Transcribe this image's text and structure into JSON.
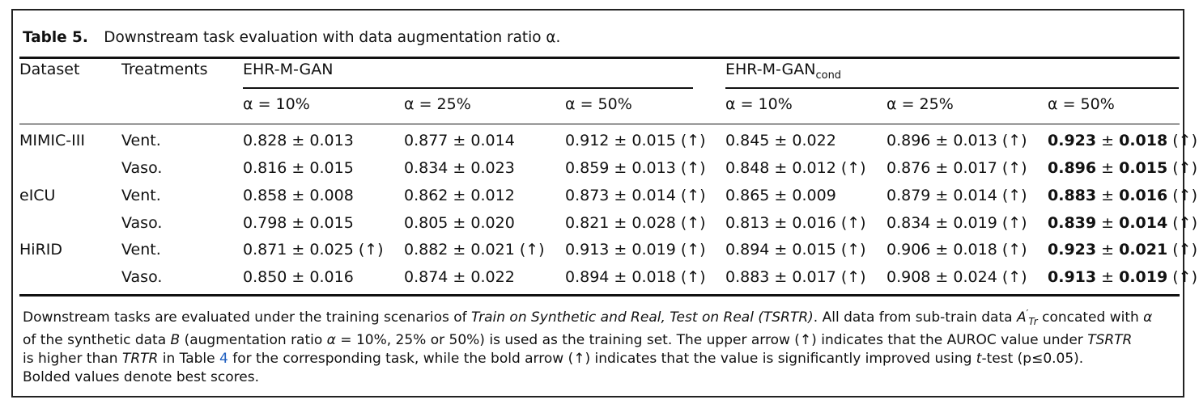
{
  "caption": {
    "label": "Table 5.",
    "text": "Downstream task evaluation with data augmentation ratio α."
  },
  "header": {
    "col_dataset": "Dataset",
    "col_treatments": "Treatments",
    "group1": "EHR-M-GAN",
    "group2_main": "EHR-M-GAN",
    "group2_sub": "cond",
    "ratios": [
      "α = 10%",
      "α = 25%",
      "α = 50%",
      "α = 10%",
      "α = 25%",
      "α = 50%"
    ]
  },
  "rows": [
    {
      "dataset": "MIMIC-III",
      "treatment": "Vent.",
      "cells": [
        {
          "v": "0.828 ± 0.013",
          "a": ""
        },
        {
          "v": "0.877 ± 0.014",
          "a": ""
        },
        {
          "v": "0.912 ± 0.015",
          "a": "(↑)"
        },
        {
          "v": "0.845 ± 0.022",
          "a": ""
        },
        {
          "v": "0.896 ± 0.013",
          "a": "(↑)"
        },
        {
          "m": "0.923",
          "pm": " ± ",
          "s": "0.018",
          "a": "(↑)"
        }
      ]
    },
    {
      "dataset": "",
      "treatment": "Vaso.",
      "cells": [
        {
          "v": "0.816 ± 0.015",
          "a": ""
        },
        {
          "v": "0.834 ± 0.023",
          "a": ""
        },
        {
          "v": "0.859 ± 0.013",
          "a": "(↑)"
        },
        {
          "v": "0.848 ± 0.012",
          "a": "(↑)"
        },
        {
          "v": "0.876 ± 0.017",
          "a": "(↑)"
        },
        {
          "m": "0.896",
          "pm": " ± ",
          "s": "0.015",
          "a": "(↑)"
        }
      ]
    },
    {
      "dataset": "eICU",
      "treatment": "Vent.",
      "cells": [
        {
          "v": "0.858 ± 0.008",
          "a": ""
        },
        {
          "v": "0.862 ± 0.012",
          "a": ""
        },
        {
          "v": "0.873 ± 0.014",
          "a": "(↑)"
        },
        {
          "v": "0.865 ± 0.009",
          "a": ""
        },
        {
          "v": "0.879 ± 0.014",
          "a": "(↑)"
        },
        {
          "m": "0.883",
          "pm": " ± ",
          "s": "0.016",
          "a": "(↑)"
        }
      ]
    },
    {
      "dataset": "",
      "treatment": "Vaso.",
      "cells": [
        {
          "v": "0.798 ± 0.015",
          "a": ""
        },
        {
          "v": "0.805 ± 0.020",
          "a": ""
        },
        {
          "v": "0.821 ± 0.028",
          "a": "(↑)"
        },
        {
          "v": "0.813 ± 0.016",
          "a": "(↑)"
        },
        {
          "v": "0.834 ± 0.019",
          "a": "(↑)"
        },
        {
          "m": "0.839",
          "pm": " ± ",
          "s": "0.014",
          "a": "(↑)"
        }
      ]
    },
    {
      "dataset": "HiRID",
      "treatment": "Vent.",
      "cells": [
        {
          "v": "0.871 ± 0.025",
          "a": "(↑)"
        },
        {
          "v": "0.882 ± 0.021",
          "a": "(↑)"
        },
        {
          "v": "0.913 ± 0.019",
          "a": "(↑)"
        },
        {
          "v": "0.894 ± 0.015",
          "a": "(↑)"
        },
        {
          "v": "0.906 ± 0.018",
          "a": "(↑)"
        },
        {
          "m": "0.923",
          "pm": " ± ",
          "s": "0.021",
          "a": "(↑)"
        }
      ]
    },
    {
      "dataset": "",
      "treatment": "Vaso.",
      "cells": [
        {
          "v": "0.850 ± 0.016",
          "a": ""
        },
        {
          "v": "0.874 ± 0.022",
          "a": ""
        },
        {
          "v": "0.894 ± 0.018",
          "a": "(↑)"
        },
        {
          "v": "0.883 ± 0.017",
          "a": "(↑)"
        },
        {
          "v": "0.908 ± 0.024",
          "a": "(↑)"
        },
        {
          "m": "0.913",
          "pm": " ± ",
          "s": "0.019",
          "a": "(↑)"
        }
      ]
    }
  ],
  "note": {
    "line1_a": "Downstream tasks are evaluated under the training scenarios of ",
    "line1_b": "Train on Synthetic and Real, Test on Real (TSRTR)",
    "line1_c": ". All data from sub-train data ",
    "line1_d": "A",
    "line1_e": "′",
    "line1_f": "Tr",
    "line1_g": " concated with ",
    "line1_h": "α",
    "line2_a": "of the synthetic data ",
    "line2_b": "B",
    "line2_c": " (augmentation ratio ",
    "line2_d": "α",
    "line2_e": " = 10%, 25% or 50%) is used as the training set. The upper arrow (↑) indicates that the AUROC value under ",
    "line2_f": "TSRTR",
    "line3_a": "is higher than ",
    "line3_b": "TRTR",
    "line3_c": " in Table ",
    "line3_d": "4",
    "line3_e": " for the corresponding task, while the bold arrow (↑) indicates that the value is significantly improved using ",
    "line3_f": "t",
    "line3_g": "-test (p≤0.05).",
    "line4": "Bolded values denote best scores."
  }
}
